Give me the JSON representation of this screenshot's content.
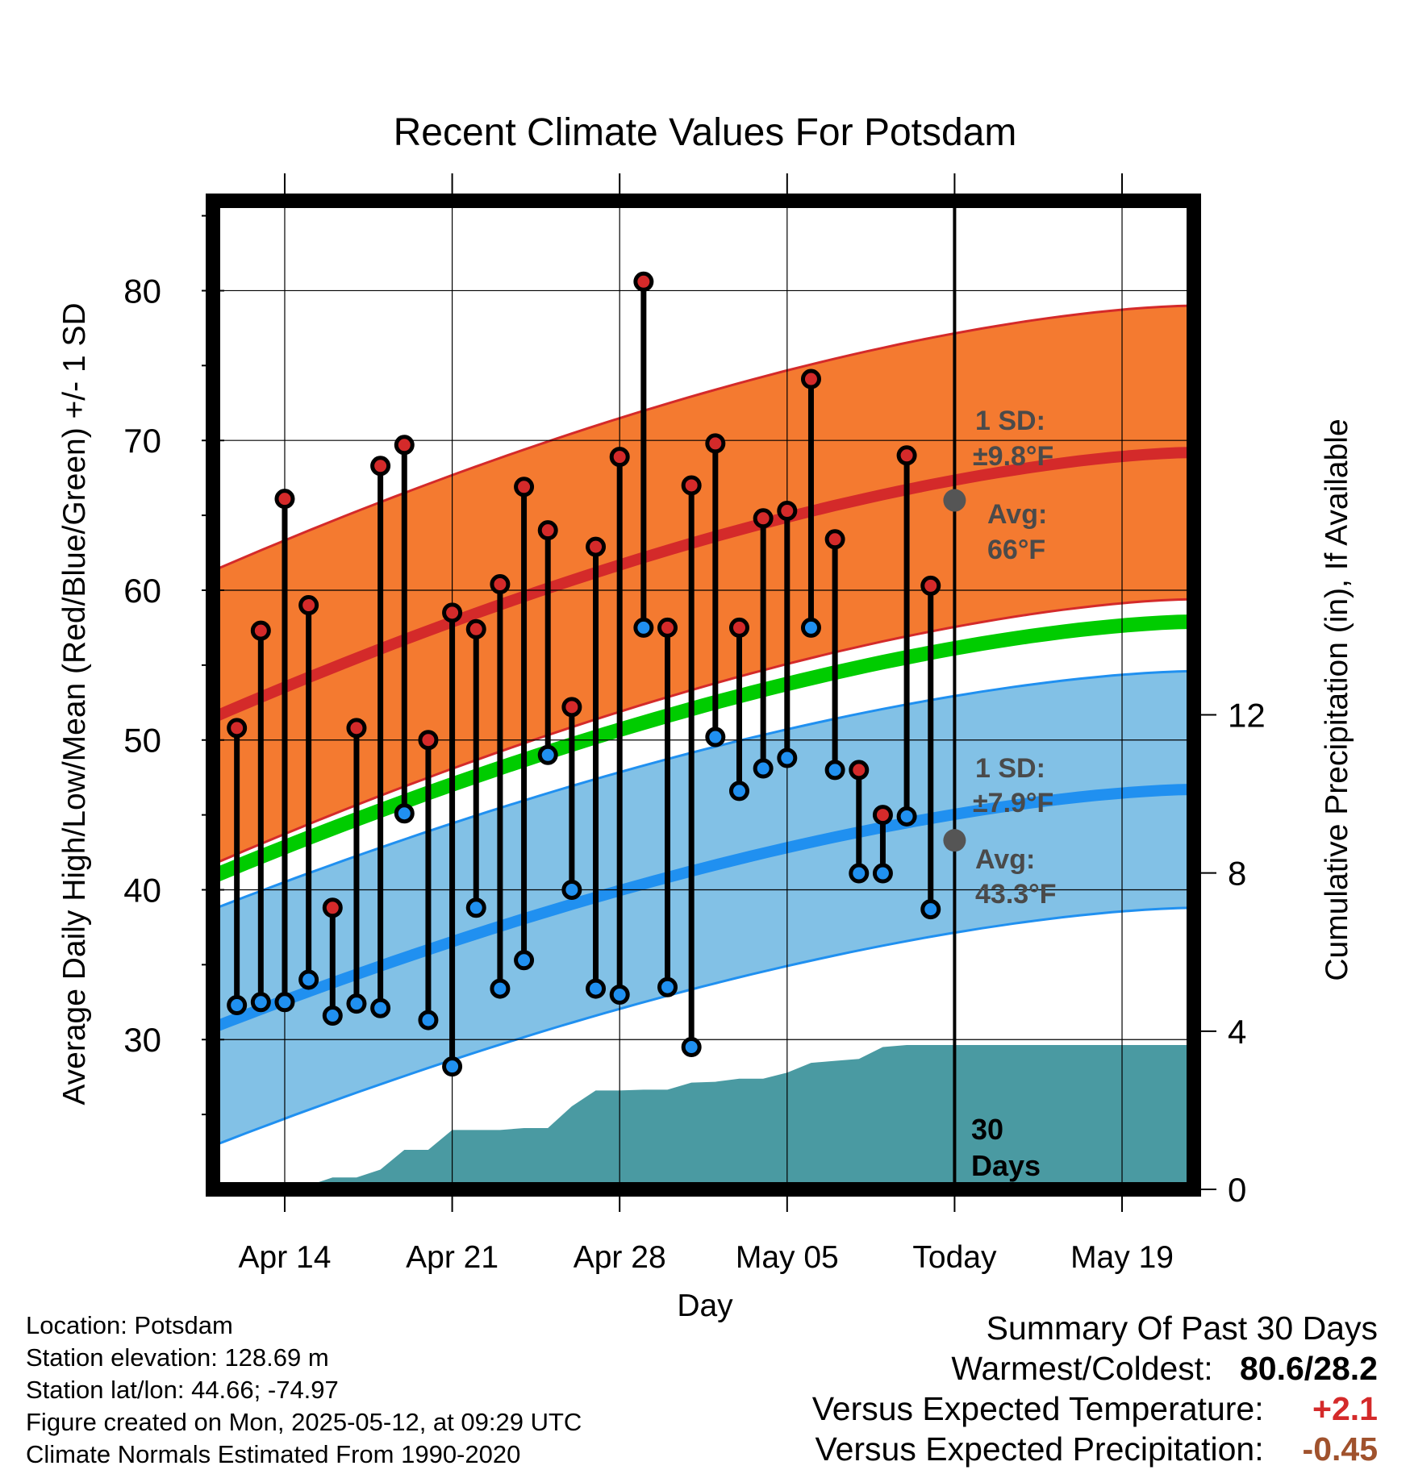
{
  "chart_data": {
    "type": "line",
    "title": "Recent Climate Values For Potsdam",
    "xlabel": "Day",
    "ylabel_left": "Average Daily High/Low/Mean (Red/Blue/Green) +/- 1 SD",
    "ylabel_right": "Cumulative Precipitation (in), If Available",
    "x_ticks": [
      "Apr 14",
      "Apr 21",
      "Apr 28",
      "May 05",
      "Today",
      "May 19"
    ],
    "x_range": [
      "2025-04-11",
      "2025-05-22"
    ],
    "today": "2025-05-12",
    "y_left_ticks": [
      30,
      40,
      50,
      60,
      70,
      80
    ],
    "y_left_range": [
      20,
      86
    ],
    "y_right_ticks": [
      0,
      4,
      8,
      12
    ],
    "y_right_range": [
      0,
      25
    ],
    "dates": [
      "2025-04-12",
      "2025-04-13",
      "2025-04-14",
      "2025-04-15",
      "2025-04-16",
      "2025-04-17",
      "2025-04-18",
      "2025-04-19",
      "2025-04-20",
      "2025-04-21",
      "2025-04-22",
      "2025-04-23",
      "2025-04-24",
      "2025-04-25",
      "2025-04-26",
      "2025-04-27",
      "2025-04-28",
      "2025-04-29",
      "2025-04-30",
      "2025-05-01",
      "2025-05-02",
      "2025-05-03",
      "2025-05-04",
      "2025-05-05",
      "2025-05-06",
      "2025-05-07",
      "2025-05-08",
      "2025-05-09",
      "2025-05-10",
      "2025-05-11"
    ],
    "highs": [
      50.8,
      57.3,
      66.1,
      59.0,
      38.8,
      50.8,
      68.3,
      69.7,
      50.0,
      58.5,
      57.4,
      60.4,
      66.9,
      64.0,
      52.2,
      62.9,
      68.9,
      80.6,
      57.5,
      67.0,
      69.8,
      57.5,
      64.8,
      65.3,
      74.1,
      63.4,
      48.0,
      45.0,
      69.0,
      60.3
    ],
    "lows": [
      32.3,
      32.5,
      32.5,
      34.0,
      31.6,
      32.4,
      32.1,
      45.1,
      31.3,
      28.2,
      38.8,
      33.4,
      35.3,
      49.0,
      40.0,
      33.4,
      33.0,
      57.5,
      33.5,
      29.5,
      50.2,
      46.6,
      48.1,
      48.8,
      57.5,
      48.0,
      41.1,
      41.1,
      44.9,
      38.7
    ],
    "normal_high": {
      "start": 51.5,
      "end": 69.2,
      "sd": 9.8
    },
    "normal_low": {
      "start": 30.8,
      "end": 46.7,
      "sd": 7.9
    },
    "normal_mean": {
      "start": 40.9,
      "end": 57.9
    },
    "precip_cumulative": {
      "dates": [
        "2025-04-14",
        "2025-04-15",
        "2025-04-16",
        "2025-04-17",
        "2025-04-18",
        "2025-04-19",
        "2025-04-20",
        "2025-04-21",
        "2025-04-22",
        "2025-04-23",
        "2025-04-24",
        "2025-04-25",
        "2025-04-26",
        "2025-04-27",
        "2025-04-28",
        "2025-04-29",
        "2025-04-30",
        "2025-05-01",
        "2025-05-02",
        "2025-05-03",
        "2025-05-04",
        "2025-05-05",
        "2025-05-06",
        "2025-05-07",
        "2025-05-08",
        "2025-05-09",
        "2025-05-10",
        "2025-05-11",
        "2025-05-12",
        "2025-05-22"
      ],
      "values": [
        0.0,
        0.1,
        0.3,
        0.3,
        0.5,
        1.0,
        1.0,
        1.5,
        1.5,
        1.5,
        1.55,
        1.55,
        2.1,
        2.5,
        2.5,
        2.52,
        2.52,
        2.7,
        2.72,
        2.8,
        2.8,
        2.95,
        3.2,
        3.25,
        3.3,
        3.6,
        3.65,
        3.65,
        3.65,
        3.65
      ]
    },
    "annotations": {
      "high_sd": [
        "1 SD:",
        "±9.8°F"
      ],
      "high_avg": [
        "Avg:",
        "66°F"
      ],
      "low_sd": [
        "1 SD:",
        "±7.9°F"
      ],
      "low_avg": [
        "Avg:",
        "43.3°F"
      ],
      "days": [
        "30",
        "Days"
      ]
    },
    "colors": {
      "high_band": "#f47a30",
      "high_line": "#d42a2a",
      "low_band": "#82c1e6",
      "low_line": "#2090f0",
      "mean_line": "#00cc00",
      "precip": "#4a9aa2",
      "high_dot": "#d42a2a",
      "low_dot": "#2090f0",
      "annotation": "#4a4a4a"
    }
  },
  "info": {
    "location": "Location: Potsdam",
    "elevation": "Station elevation: 128.69 m",
    "latlon": "Station lat/lon: 44.66; -74.97",
    "created": "Figure created on Mon, 2025-05-12, at 09:29 UTC",
    "normals": "Climate Normals Estimated From 1990-2020"
  },
  "summary": {
    "title": "Summary Of Past 30 Days",
    "warm_cold_label": "Warmest/Coldest:",
    "warm_cold_value": "80.6/28.2",
    "temp_label": "Versus Expected Temperature:",
    "temp_value": "+2.1",
    "temp_color": "#d42a2a",
    "precip_label": "Versus Expected Precipitation:",
    "precip_value": "-0.45",
    "precip_color": "#a0522d"
  }
}
